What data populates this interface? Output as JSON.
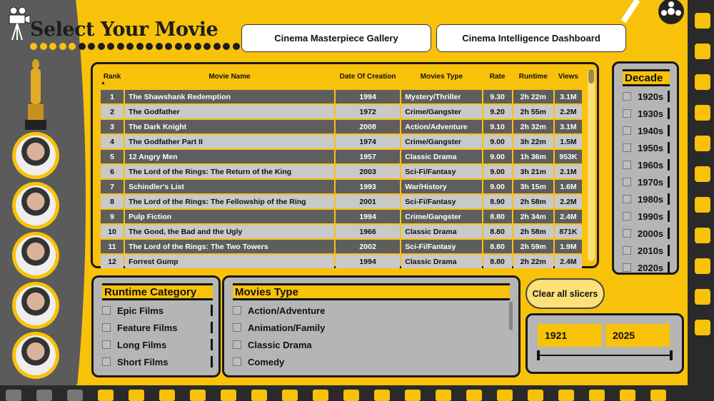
{
  "header": {
    "title": "Select Your Movie",
    "nav_buttons": [
      "Cinema Masterpiece Gallery",
      "Cinema Intelligence Dashboard"
    ]
  },
  "colors": {
    "background": "#F9C20A",
    "dark_row": "#5e5e5e",
    "light_row": "#c9c9c9",
    "panel": "#b5b5b5"
  },
  "icons": [
    "movie-camera-icon",
    "oscar-statue-icon",
    "film-reel-icon"
  ],
  "table": {
    "columns": [
      "Rank",
      "Movie Name",
      "Date Of Creation",
      "Movies Type",
      "Rate",
      "Runtime",
      "Views"
    ],
    "sort": "Rank ascending",
    "rows": [
      [
        "1",
        "The Shawshank Redemption",
        "1994",
        "Mystery/Thriller",
        "9.30",
        "2h 22m",
        "3.1M"
      ],
      [
        "2",
        "The Godfather",
        "1972",
        "Crime/Gangster",
        "9.20",
        "2h 55m",
        "2.2M"
      ],
      [
        "3",
        "The Dark Knight",
        "2008",
        "Action/Adventure",
        "9.10",
        "2h 32m",
        "3.1M"
      ],
      [
        "4",
        "The Godfather Part II",
        "1974",
        "Crime/Gangster",
        "9.00",
        "3h 22m",
        "1.5M"
      ],
      [
        "5",
        "12 Angry Men",
        "1957",
        "Classic Drama",
        "9.00",
        "1h 36m",
        "953K"
      ],
      [
        "6",
        "The Lord of the Rings: The Return of the King",
        "2003",
        "Sci-Fi/Fantasy",
        "9.00",
        "3h 21m",
        "2.1M"
      ],
      [
        "7",
        "Schindler's List",
        "1993",
        "War/History",
        "9.00",
        "3h 15m",
        "1.6M"
      ],
      [
        "8",
        "The Lord of the Rings: The Fellowship of the Ring",
        "2001",
        "Sci-Fi/Fantasy",
        "8.90",
        "2h 58m",
        "2.2M"
      ],
      [
        "9",
        "Pulp Fiction",
        "1994",
        "Crime/Gangster",
        "8.80",
        "2h 34m",
        "2.4M"
      ],
      [
        "10",
        "The Good, the Bad and the Ugly",
        "1966",
        "Classic Drama",
        "8.80",
        "2h 58m",
        "871K"
      ],
      [
        "11",
        "The Lord of the Rings: The Two Towers",
        "2002",
        "Sci-Fi/Fantasy",
        "8.80",
        "2h 59m",
        "1.9M"
      ],
      [
        "12",
        "Forrest Gump",
        "1994",
        "Classic Drama",
        "8.80",
        "2h 22m",
        "2.4M"
      ]
    ]
  },
  "decade": {
    "title": "Decade",
    "options": [
      "1920s",
      "1930s",
      "1940s",
      "1950s",
      "1960s",
      "1970s",
      "1980s",
      "1990s",
      "2000s",
      "2010s",
      "2020s"
    ]
  },
  "runtime_category": {
    "title": "Runtime Category",
    "options": [
      "Epic Films",
      "Feature Films",
      "Long Films",
      "Short Films"
    ]
  },
  "movies_type": {
    "title": "Movies Type",
    "options": [
      "Action/Adventure",
      "Animation/Family",
      "Classic Drama",
      "Comedy"
    ]
  },
  "clear_button": "Clear all slicers",
  "year_range": {
    "min": "1921",
    "max": "2025"
  }
}
